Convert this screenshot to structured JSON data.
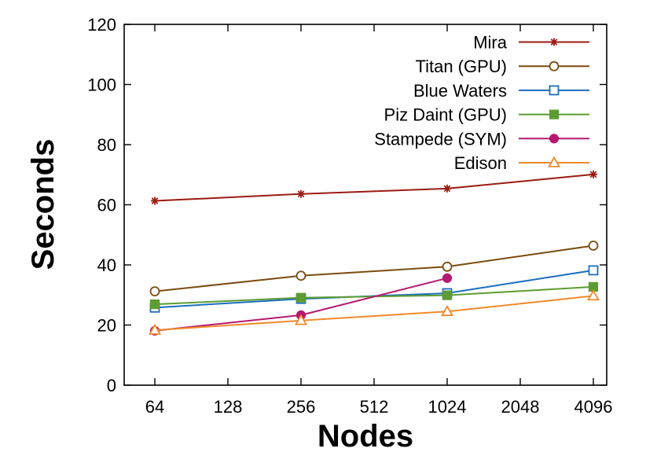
{
  "chart_data": {
    "type": "line",
    "title": "",
    "xlabel": "Nodes",
    "ylabel": "Seconds",
    "x_scale": "log2",
    "x_ticks": [
      "64",
      "128",
      "256",
      "512",
      "1024",
      "2048",
      "4096"
    ],
    "ylim": [
      0,
      120
    ],
    "y_ticks": [
      "0",
      "20",
      "40",
      "60",
      "80",
      "100",
      "120"
    ],
    "grid": false,
    "legend_position": "top-right",
    "series": [
      {
        "name": "Mira",
        "color": "#9b1b12",
        "marker": "star",
        "x": [
          64,
          256,
          1024,
          4096
        ],
        "values": [
          61.3,
          63.6,
          65.4,
          70.1
        ]
      },
      {
        "name": "Titan (GPU)",
        "color": "#7a4c0f",
        "marker": "open-circle",
        "x": [
          64,
          256,
          1024,
          4096
        ],
        "values": [
          31.2,
          36.4,
          39.4,
          46.4
        ]
      },
      {
        "name": "Blue Waters",
        "color": "#1a6fbf",
        "marker": "open-square",
        "x": [
          64,
          256,
          1024,
          4096
        ],
        "values": [
          25.8,
          28.7,
          30.6,
          38.2
        ]
      },
      {
        "name": "Piz Daint (GPU)",
        "color": "#5d9c32",
        "marker": "filled-square",
        "x": [
          64,
          256,
          1024,
          4096
        ],
        "values": [
          26.9,
          29.1,
          29.9,
          32.7
        ]
      },
      {
        "name": "Stampede (SYM)",
        "color": "#b5186f",
        "marker": "filled-circle",
        "x": [
          64,
          256,
          1024
        ],
        "values": [
          18.1,
          23.3,
          35.6
        ]
      },
      {
        "name": "Edison",
        "color": "#ef8a2a",
        "marker": "open-triangle",
        "x": [
          64,
          256,
          1024,
          4096
        ],
        "values": [
          18.3,
          21.5,
          24.5,
          29.7
        ]
      }
    ]
  }
}
